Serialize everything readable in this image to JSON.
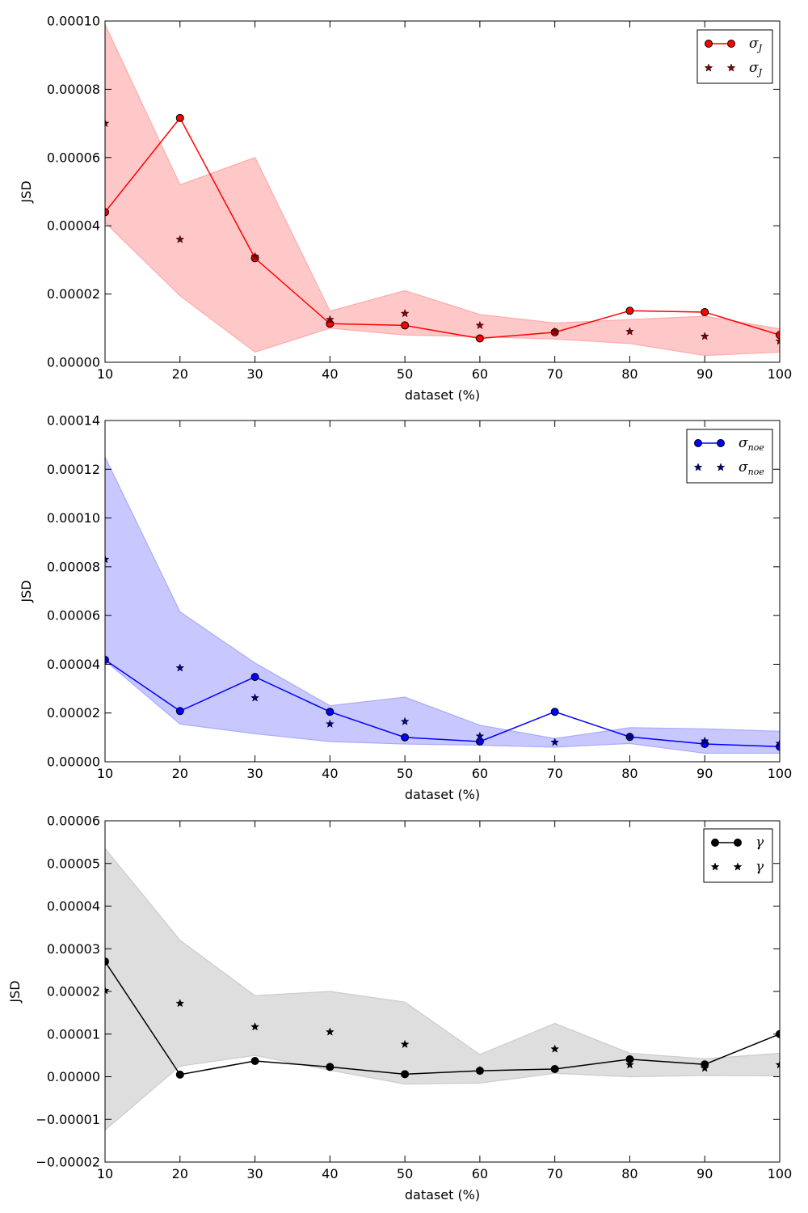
{
  "chart_data": [
    {
      "type": "line",
      "xlabel": "dataset (%)",
      "ylabel": "JSD",
      "xlim": [
        10,
        100
      ],
      "ylim": [
        0,
        0.0001
      ],
      "x_ticks": [
        10,
        20,
        30,
        40,
        50,
        60,
        70,
        80,
        90,
        100
      ],
      "x_tick_labels": [
        "10",
        "20",
        "30",
        "40",
        "50",
        "60",
        "70",
        "80",
        "90",
        "100"
      ],
      "y_ticks": [
        0,
        2e-05,
        4e-05,
        6e-05,
        8e-05,
        0.0001
      ],
      "y_tick_labels": [
        "0.00000",
        "0.00002",
        "0.00004",
        "0.00006",
        "0.00008",
        "0.00010"
      ],
      "grid": false,
      "legend_position": "top-right",
      "colors": {
        "line": "#ff0000",
        "marker": "#ff0000",
        "star": "#8b0000",
        "band": "#ffaaaa"
      },
      "x": [
        10,
        20,
        30,
        40,
        50,
        60,
        70,
        80,
        90,
        100
      ],
      "series": [
        {
          "name": "σ_J",
          "style": "line-circle",
          "values": [
            4.4e-05,
            7.16e-05,
            3.05e-05,
            1.13e-05,
            1.08e-05,
            7e-06,
            8.8e-06,
            1.51e-05,
            1.47e-05,
            8e-06
          ]
        },
        {
          "name": "σ_J",
          "style": "star",
          "values": [
            7e-05,
            3.6e-05,
            3.1e-05,
            1.25e-05,
            1.43e-05,
            1.08e-05,
            9e-06,
            9e-06,
            7.6e-06,
            6.2e-06
          ]
        }
      ],
      "band": {
        "upper": [
          9.9e-05,
          5.2e-05,
          6e-05,
          1.5e-05,
          2.1e-05,
          1.4e-05,
          1.15e-05,
          1.25e-05,
          1.35e-05,
          9.8e-06
        ],
        "lower": [
          4.1e-05,
          1.95e-05,
          3e-06,
          1e-05,
          8e-06,
          7.5e-06,
          6.8e-06,
          5.5e-06,
          2e-06,
          3e-06
        ]
      }
    },
    {
      "type": "line",
      "xlabel": "dataset (%)",
      "ylabel": "JSD",
      "xlim": [
        10,
        100
      ],
      "ylim": [
        0,
        0.00014
      ],
      "x_ticks": [
        10,
        20,
        30,
        40,
        50,
        60,
        70,
        80,
        90,
        100
      ],
      "x_tick_labels": [
        "10",
        "20",
        "30",
        "40",
        "50",
        "60",
        "70",
        "80",
        "90",
        "100"
      ],
      "y_ticks": [
        0,
        2e-05,
        4e-05,
        6e-05,
        8e-05,
        0.0001,
        0.00012,
        0.00014
      ],
      "y_tick_labels": [
        "0.00000",
        "0.00002",
        "0.00004",
        "0.00006",
        "0.00008",
        "0.00010",
        "0.00012",
        "0.00014"
      ],
      "grid": false,
      "legend_position": "top-right",
      "colors": {
        "line": "#0000ff",
        "marker": "#0000ff",
        "star": "#00008b",
        "band": "#aaaaff"
      },
      "x": [
        10,
        20,
        30,
        40,
        50,
        60,
        70,
        80,
        90,
        100
      ],
      "series": [
        {
          "name": "σ_noe",
          "style": "line-circle",
          "values": [
            4.18e-05,
            2.08e-05,
            3.48e-05,
            2.05e-05,
            1e-05,
            8.3e-06,
            2.05e-05,
            1.02e-05,
            7.3e-06,
            6.2e-06
          ]
        },
        {
          "name": "σ_noe",
          "style": "star",
          "values": [
            8.3e-05,
            3.85e-05,
            2.62e-05,
            1.55e-05,
            1.65e-05,
            1.05e-05,
            8e-06,
            1.02e-05,
            8.5e-06,
            7.5e-06
          ]
        }
      ],
      "band": {
        "upper": [
          0.000125,
          6.15e-05,
          4.05e-05,
          2.3e-05,
          2.65e-05,
          1.5e-05,
          9.5e-06,
          1.4e-05,
          1.35e-05,
          1.25e-05
        ],
        "lower": [
          4.15e-05,
          1.55e-05,
          1.15e-05,
          8.3e-06,
          7.3e-06,
          6.8e-06,
          6e-06,
          7.5e-06,
          3.5e-06,
          3.5e-06
        ]
      }
    },
    {
      "type": "line",
      "xlabel": "dataset (%)",
      "ylabel": "JSD",
      "xlim": [
        10,
        100
      ],
      "ylim": [
        -2e-05,
        6e-05
      ],
      "x_ticks": [
        10,
        20,
        30,
        40,
        50,
        60,
        70,
        80,
        90,
        100
      ],
      "x_tick_labels": [
        "10",
        "20",
        "30",
        "40",
        "50",
        "60",
        "70",
        "80",
        "90",
        "100"
      ],
      "y_ticks": [
        -2e-05,
        -1e-05,
        0,
        1e-05,
        2e-05,
        3e-05,
        4e-05,
        5e-05,
        6e-05
      ],
      "y_tick_labels": [
        "−0.00002",
        "−0.00001",
        "0.00000",
        "0.00001",
        "0.00002",
        "0.00003",
        "0.00004",
        "0.00005",
        "0.00006"
      ],
      "grid": false,
      "legend_position": "top-right",
      "colors": {
        "line": "#000000",
        "marker": "#000000",
        "star": "#000000",
        "band": "#cccccc"
      },
      "x": [
        10,
        20,
        30,
        40,
        50,
        60,
        70,
        80,
        90,
        100
      ],
      "series": [
        {
          "name": "γ",
          "style": "line-circle",
          "values": [
            2.7e-05,
            5e-07,
            3.7e-06,
            2.3e-06,
            6e-07,
            1.4e-06,
            1.8e-06,
            4.1e-06,
            2.9e-06,
            1e-05
          ]
        },
        {
          "name": "γ",
          "style": "star",
          "values": [
            2.02e-05,
            1.72e-05,
            1.17e-05,
            1.05e-05,
            7.6e-06,
            1.5e-06,
            6.5e-06,
            2.8e-06,
            2e-06,
            2.8e-06
          ]
        }
      ],
      "band": {
        "upper": [
          5.35e-05,
          3.2e-05,
          1.9e-05,
          2e-05,
          1.75e-05,
          5.2e-06,
          1.25e-05,
          5.5e-06,
          4.2e-06,
          5.5e-06
        ],
        "lower": [
          -1.25e-05,
          2.5e-06,
          5e-06,
          1.5e-06,
          -1.7e-06,
          -1.5e-06,
          8e-07,
          0.0,
          3e-07,
          2e-07
        ]
      }
    }
  ]
}
